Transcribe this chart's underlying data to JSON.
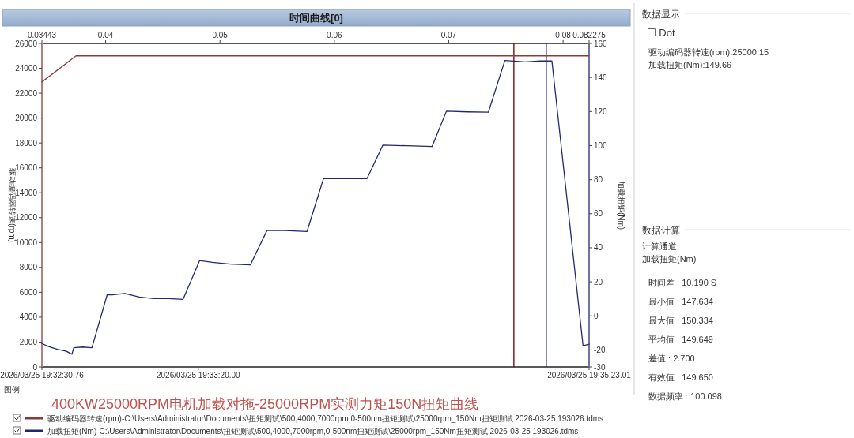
{
  "chart_data": [
    {
      "type": "line",
      "title": "时间曲线[0]",
      "ylabel": "驱动编码器转速(rpm)",
      "y2label": "加载扭矩(Nm)",
      "xlim": [
        "2026-03-25T19:32:30.76",
        "2026-03-25T19:35:23.01"
      ],
      "xticks": [
        {
          "value": "2026-03-25T19:32:30.76",
          "label": "2026/03/25 19:32:30.76"
        },
        {
          "value": "2026-03-25T19:33:20",
          "label": "2026/03/25 19:33:20.00"
        },
        {
          "value": "2026-03-25T19:35:23.01",
          "label": "2026/03/25 19:35:23.01"
        }
      ],
      "x2lim": [
        0.03443,
        0.082275
      ],
      "x2ticks": [
        0.03443,
        0.04,
        0.05,
        0.06,
        0.07,
        0.08,
        0.082275
      ],
      "ylim": [
        0,
        26000
      ],
      "yticks": [
        0,
        2000,
        4000,
        6000,
        8000,
        10000,
        12000,
        14000,
        16000,
        18000,
        20000,
        22000,
        24000,
        26000
      ],
      "y2lim": [
        -30,
        160
      ],
      "y2ticks": [
        -30,
        -20,
        0,
        20,
        40,
        60,
        80,
        100,
        120,
        140,
        160
      ],
      "series": [
        {
          "name": "驱动编码器转速(rpm)-C:\\Users\\Administrator\\Documents\\扭矩测试\\500,4000,7000rpm,0-500nm扭矩测试\\25000rpm_150Nm扭矩测试 2026-03-25 193026.tdms",
          "color": "#8b3a3a",
          "x": [
            "2026-03-25T19:32:30.76",
            "2026-03-25T19:32:41.5",
            "2026-03-25T19:35:23.01"
          ],
          "values": [
            22900,
            25000,
            25000
          ]
        },
        {
          "name": "加载扭矩(Nm)-C:\\Users\\Administrator\\Documents\\扭矩测试\\500,4000,7000rpm,0-500nm扭矩测试\\25000rpm_150Nm扭矩测试 2026-03-25 193026.tdms",
          "color": "#1f2a6e",
          "axis": "y2",
          "x": [
            "2026-03-25T19:32:30.76",
            "2026-03-25T19:32:32.7",
            "2026-03-25T19:32:35.6",
            "2026-03-25T19:32:38.5",
            "2026-03-25T19:32:40.2",
            "2026-03-25T19:32:40.8",
            "2026-03-25T19:32:43.6",
            "2026-03-25T19:32:46.5",
            "2026-03-25T19:32:51.3",
            "2026-03-25T19:32:52.9",
            "2026-03-25T19:32:56.9",
            "2026-03-25T19:33:01.4",
            "2026-03-25T19:33:06.0",
            "2026-03-25T19:33:10.6",
            "2026-03-25T19:33:15.2",
            "2026-03-25T19:33:20.4",
            "2026-03-25T19:33:24.4",
            "2026-03-25T19:33:30.1",
            "2026-03-25T19:33:36.4",
            "2026-03-25T19:33:41.6",
            "2026-03-25T19:33:47.3",
            "2026-03-25T19:33:54.2",
            "2026-03-25T19:33:59.4",
            "2026-03-25T19:34:06.2",
            "2026-03-25T19:34:13.1",
            "2026-03-25T19:34:18.1",
            "2026-03-25T19:34:25.7",
            "2026-03-25T19:34:33.6",
            "2026-03-25T19:34:38.1",
            "2026-03-25T19:34:44.7",
            "2026-03-25T19:34:51.3",
            "2026-03-25T19:34:56.5",
            "2026-03-25T19:35:03.0",
            "2026-03-25T19:35:07.6",
            "2026-03-25T19:35:11.3",
            "2026-03-25T19:35:21.1",
            "2026-03-25T19:35:23.01"
          ],
          "values": [
            -16.2,
            -17.9,
            -19.6,
            -20.8,
            -22.5,
            -18.7,
            -18.3,
            -18.7,
            12.4,
            12.4,
            13.2,
            11.1,
            10.1,
            10.1,
            9.7,
            32.5,
            31.5,
            30.4,
            30.0,
            50.1,
            50.1,
            49.5,
            80.6,
            80.6,
            80.6,
            100.3,
            99.9,
            99.5,
            120.2,
            119.8,
            119.6,
            150.0,
            149.2,
            149.7,
            149.7,
            -17.5,
            -16.6
          ]
        }
      ],
      "ref_lines": [
        {
          "axis": "x",
          "value": "2026-03-25T19:34:59.33",
          "color": "#8b1a1a"
        },
        {
          "axis": "x",
          "value": "2026-03-25T19:35:09.52",
          "color": "#1f2d7a"
        }
      ],
      "legend": "bottom",
      "legend_title": "图例",
      "annotations": [
        "400KW25000RPM电机加载对拖-25000RPM实测力矩150N扭矩曲线"
      ]
    },
    {
      "type": "other",
      "title": "数据显示",
      "annotations": [
        "☐ Dot",
        "驱动编码器转速(rpm):25000.15",
        "加载扭矩(Nm):149.66"
      ]
    },
    {
      "type": "other",
      "title": "数据计算",
      "annotations": [
        "计算通道:",
        "加载扭矩(Nm)",
        "时间差 : 10.190 S",
        "最小值 : 147.634",
        "最大值 : 150.334",
        "平均值 : 149.649",
        "差值 : 2.700",
        "有效值 : 149.650",
        "数据频率 : 100.098"
      ]
    }
  ]
}
